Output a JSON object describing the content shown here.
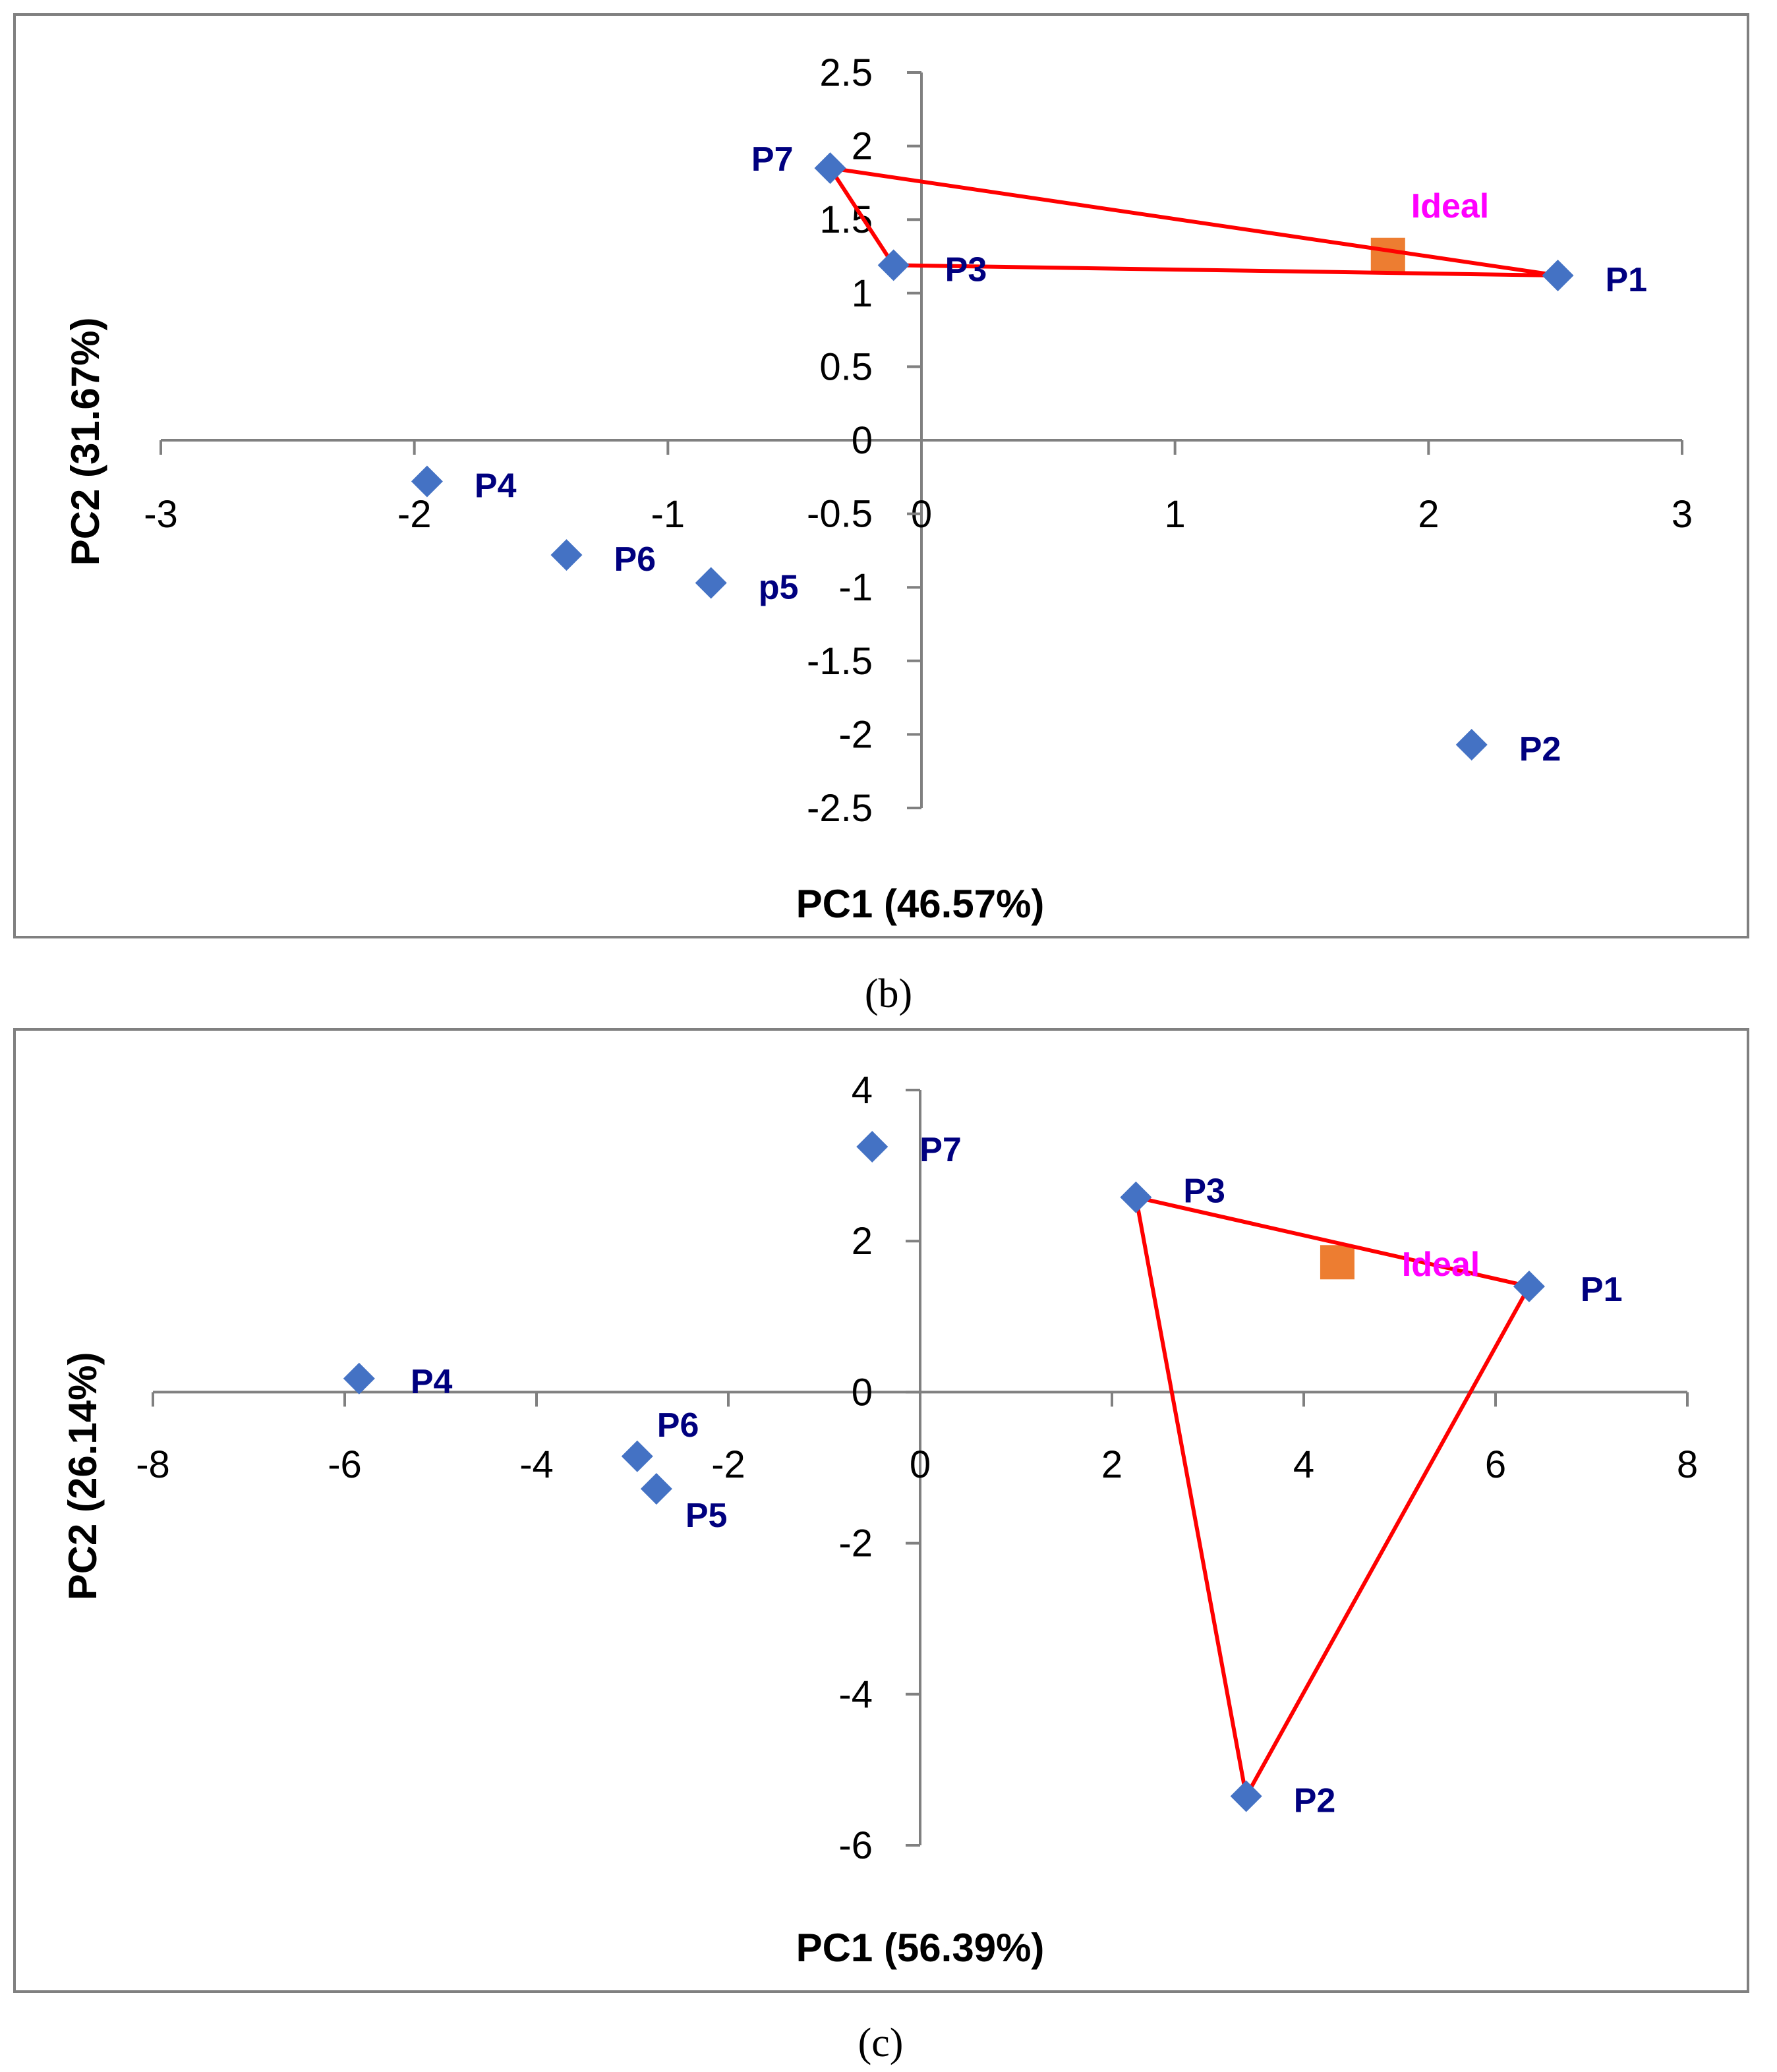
{
  "chart_data": [
    {
      "type": "scatter",
      "panel": "b",
      "caption": "(b)",
      "xlabel": "PC1 (46.57%)",
      "ylabel": "PC2 (31.67%)",
      "xlim": [
        -3,
        3
      ],
      "ylim": [
        -2.5,
        2.5
      ],
      "x_ticks": [
        "-3",
        "-2",
        "-1",
        "0",
        "1",
        "2",
        "3"
      ],
      "y_ticks": [
        "2.5",
        "2",
        "1.5",
        "1",
        "0.5",
        "0",
        "-0.5",
        "-1",
        "-1.5",
        "-2",
        "-2.5"
      ],
      "points": [
        {
          "label": "P7",
          "x": -0.36,
          "y": 1.85
        },
        {
          "label": "P3",
          "x": -0.11,
          "y": 1.19
        },
        {
          "label": "P1",
          "x": 2.51,
          "y": 1.12
        },
        {
          "label": "P4",
          "x": -1.95,
          "y": -0.28
        },
        {
          "label": "P6",
          "x": -1.4,
          "y": -0.78
        },
        {
          "label": "p5",
          "x": -0.83,
          "y": -0.97
        },
        {
          "label": "P2",
          "x": 2.17,
          "y": -2.07
        }
      ],
      "ideal": {
        "label": "Ideal",
        "x": 1.84,
        "y": 1.26
      },
      "polygon": [
        "P7",
        "P1",
        "P3",
        "P7"
      ],
      "colors": {
        "points": "#4472C4",
        "ideal": "#ED7D31",
        "polygon": "#FF0000",
        "labels": "#00007F",
        "ideal_label": "#FF00FF",
        "axes": "#808080",
        "frame": "#808080"
      }
    },
    {
      "type": "scatter",
      "panel": "c",
      "caption": "(c)",
      "xlabel": "PC1 (56.39%)",
      "ylabel": "PC2 (26.14%)",
      "xlim": [
        -8,
        8
      ],
      "ylim": [
        -6,
        4
      ],
      "x_ticks": [
        "-8",
        "-6",
        "-4",
        "-2",
        "0",
        "2",
        "4",
        "6",
        "8"
      ],
      "y_ticks": [
        "4",
        "2",
        "0",
        "-2",
        "-4",
        "-6"
      ],
      "points": [
        {
          "label": "P7",
          "x": -0.5,
          "y": 3.25
        },
        {
          "label": "P3",
          "x": 2.25,
          "y": 2.58
        },
        {
          "label": "P1",
          "x": 6.35,
          "y": 1.4
        },
        {
          "label": "P4",
          "x": -5.85,
          "y": 0.18
        },
        {
          "label": "P6",
          "x": -2.95,
          "y": -0.85
        },
        {
          "label": "P5",
          "x": -2.75,
          "y": -1.28
        },
        {
          "label": "P2",
          "x": 3.4,
          "y": -5.35
        }
      ],
      "ideal": {
        "label": "Ideal",
        "x": 4.35,
        "y": 1.72
      },
      "polygon": [
        "P3",
        "P1",
        "P2",
        "P3"
      ],
      "colors": {
        "points": "#4472C4",
        "ideal": "#ED7D31",
        "polygon": "#FF0000",
        "labels": "#00007F",
        "ideal_label": "#FF00FF",
        "axes": "#808080",
        "frame": "#808080"
      }
    }
  ]
}
